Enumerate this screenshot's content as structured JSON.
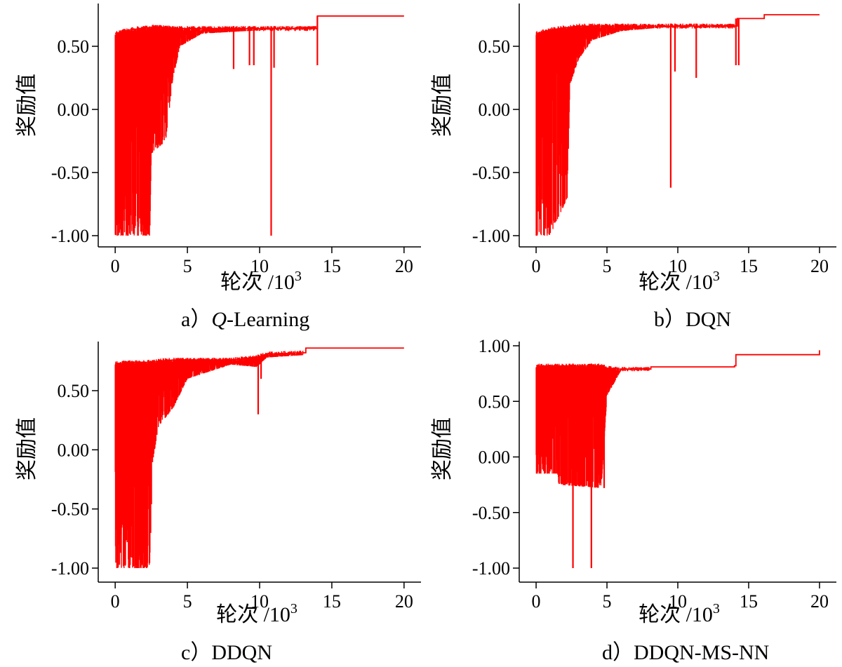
{
  "figure": {
    "series_color": "#ff0000",
    "axis_color": "#000000",
    "background": "#ffffff"
  },
  "chart_data": [
    {
      "type": "line",
      "panel": "a",
      "caption_prefix": "a）",
      "caption_italic": "Q",
      "caption_rest": "-Learning",
      "xlabel": "轮次 /10",
      "xlabel_sup": "3",
      "ylabel": "奖励值",
      "xlim": [
        -0.3,
        20.3
      ],
      "ylim": [
        -1.0,
        0.75
      ],
      "xticks": [
        0,
        5,
        10,
        15,
        20
      ],
      "yticks": [
        -1.0,
        -0.5,
        0.0,
        0.5
      ],
      "xtick_labels": [
        "0",
        "5",
        "10",
        "15",
        "20"
      ],
      "ytick_labels": [
        "-1.00",
        "-0.50",
        "0.00",
        "0.50"
      ],
      "profile": {
        "dense": [
          [
            0.0,
            0.62,
            -1.0
          ],
          [
            1.0,
            0.65,
            -1.0
          ],
          [
            2.4,
            0.67,
            -1.0
          ],
          [
            2.5,
            0.67,
            -0.35
          ],
          [
            3.5,
            0.67,
            -0.25
          ],
          [
            4.0,
            0.66,
            0.25
          ],
          [
            4.5,
            0.66,
            0.5
          ],
          [
            6.0,
            0.66,
            0.6
          ],
          [
            9.0,
            0.66,
            0.62
          ],
          [
            12.0,
            0.66,
            0.64
          ],
          [
            13.9,
            0.66,
            0.66
          ]
        ],
        "flat": [
          [
            14.0,
            0.74
          ],
          [
            20.0,
            0.74
          ]
        ],
        "spikes": [
          [
            8.2,
            0.32
          ],
          [
            9.3,
            0.35
          ],
          [
            9.6,
            0.35
          ],
          [
            10.8,
            -1.0
          ],
          [
            11.0,
            0.33
          ],
          [
            14.0,
            0.35
          ]
        ]
      }
    },
    {
      "type": "line",
      "panel": "b",
      "caption_prefix": "b）",
      "caption_italic": "",
      "caption_rest": "DQN",
      "xlabel": "轮次 /10",
      "xlabel_sup": "3",
      "ylabel": "奖励值",
      "xlim": [
        -0.3,
        20.3
      ],
      "ylim": [
        -1.0,
        0.75
      ],
      "xticks": [
        0,
        5,
        10,
        15,
        20
      ],
      "yticks": [
        -1.0,
        -0.5,
        0.0,
        0.5
      ],
      "xtick_labels": [
        "0",
        "5",
        "10",
        "15",
        "20"
      ],
      "ytick_labels": [
        "-1.00",
        "-0.50",
        "0.00",
        "0.50"
      ],
      "profile": {
        "dense": [
          [
            0.0,
            0.62,
            -1.0
          ],
          [
            1.0,
            0.65,
            -1.0
          ],
          [
            2.2,
            0.67,
            -0.7
          ],
          [
            2.4,
            0.67,
            0.2
          ],
          [
            3.0,
            0.68,
            0.4
          ],
          [
            4.0,
            0.68,
            0.55
          ],
          [
            6.0,
            0.68,
            0.62
          ],
          [
            9.0,
            0.68,
            0.65
          ],
          [
            12.0,
            0.68,
            0.66
          ],
          [
            14.0,
            0.68,
            0.67
          ]
        ],
        "flat": [
          [
            14.2,
            0.72
          ],
          [
            16.0,
            0.72
          ],
          [
            16.1,
            0.75
          ],
          [
            20.0,
            0.75
          ]
        ],
        "spikes": [
          [
            9.5,
            -0.62
          ],
          [
            9.8,
            0.3
          ],
          [
            11.3,
            0.25
          ],
          [
            14.1,
            0.35
          ],
          [
            14.3,
            0.35
          ]
        ]
      }
    },
    {
      "type": "line",
      "panel": "c",
      "caption_prefix": "c）",
      "caption_italic": "",
      "caption_rest": "DDQN",
      "xlabel": "轮次 /10",
      "xlabel_sup": "3",
      "ylabel": "奖励值",
      "xlim": [
        -0.3,
        20.3
      ],
      "ylim": [
        -1.0,
        0.85
      ],
      "xticks": [
        0,
        5,
        10,
        15,
        20
      ],
      "yticks": [
        -1.0,
        -0.5,
        0.0,
        0.5
      ],
      "xtick_labels": [
        "0",
        "5",
        "10",
        "15",
        "20"
      ],
      "ytick_labels": [
        "-1.00",
        "-0.50",
        "0.00",
        "0.50"
      ],
      "profile": {
        "dense": [
          [
            0.0,
            0.75,
            -1.0
          ],
          [
            1.5,
            0.76,
            -1.0
          ],
          [
            2.4,
            0.76,
            -1.0
          ],
          [
            2.6,
            0.76,
            -0.1
          ],
          [
            3.0,
            0.77,
            0.2
          ],
          [
            4.0,
            0.78,
            0.35
          ],
          [
            5.0,
            0.78,
            0.6
          ],
          [
            8.0,
            0.78,
            0.72
          ],
          [
            9.8,
            0.8,
            0.7
          ],
          [
            10.5,
            0.83,
            0.78
          ],
          [
            13.0,
            0.84,
            0.8
          ]
        ],
        "flat": [
          [
            13.2,
            0.86
          ],
          [
            20.0,
            0.86
          ]
        ],
        "spikes": [
          [
            9.9,
            0.3
          ],
          [
            10.1,
            0.6
          ]
        ]
      }
    },
    {
      "type": "line",
      "panel": "d",
      "caption_prefix": "d）",
      "caption_italic": "",
      "caption_rest": "DDQN-MS-NN",
      "xlabel": "轮次 /10",
      "xlabel_sup": "3",
      "ylabel": "奖励值",
      "xlim": [
        -0.3,
        20.3
      ],
      "ylim": [
        -1.0,
        1.0
      ],
      "xticks": [
        0,
        5,
        10,
        15,
        20
      ],
      "yticks": [
        -1.0,
        -0.5,
        0.0,
        0.5,
        1.0
      ],
      "xtick_labels": [
        "0",
        "5",
        "10",
        "15",
        "20"
      ],
      "ytick_labels": [
        "-1.00",
        "-0.50",
        "0.00",
        "0.50",
        "1.00"
      ],
      "profile": {
        "dense": [
          [
            0.0,
            0.84,
            -0.15
          ],
          [
            1.5,
            0.84,
            -0.15
          ],
          [
            1.6,
            0.84,
            -0.25
          ],
          [
            4.6,
            0.84,
            -0.28
          ],
          [
            5.0,
            0.82,
            0.55
          ],
          [
            6.0,
            0.81,
            0.78
          ],
          [
            8.0,
            0.81,
            0.8
          ]
        ],
        "flat": [
          [
            8.1,
            0.81
          ],
          [
            14.0,
            0.82
          ],
          [
            14.1,
            0.92
          ],
          [
            20.0,
            0.96
          ]
        ],
        "spikes": [
          [
            2.6,
            -1.0
          ],
          [
            3.9,
            -1.0
          ],
          [
            4.8,
            -0.28
          ]
        ]
      }
    }
  ]
}
